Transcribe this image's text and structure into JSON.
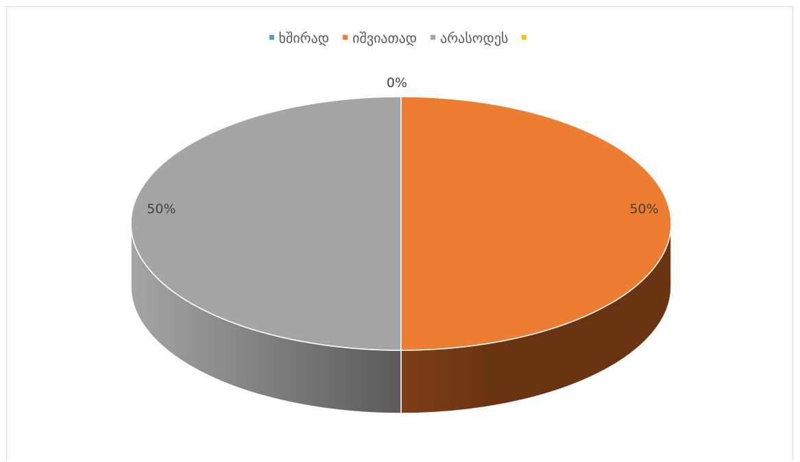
{
  "chart_data": {
    "type": "pie",
    "categories": [
      "ხშირად",
      "იშვიათად",
      "არასოდეს",
      ""
    ],
    "values": [
      0,
      50,
      50,
      0
    ],
    "data_labels": [
      "0%",
      "50%",
      "50%",
      ""
    ],
    "colors": [
      "#5b9bd5",
      "#ed7d31",
      "#a5a5a5",
      "#ffc000"
    ],
    "side_colors": [
      "#2f5f8f",
      "#6a3412",
      "#5a5a5a",
      "#8a6a00"
    ],
    "legend": "top",
    "style": "3d"
  }
}
